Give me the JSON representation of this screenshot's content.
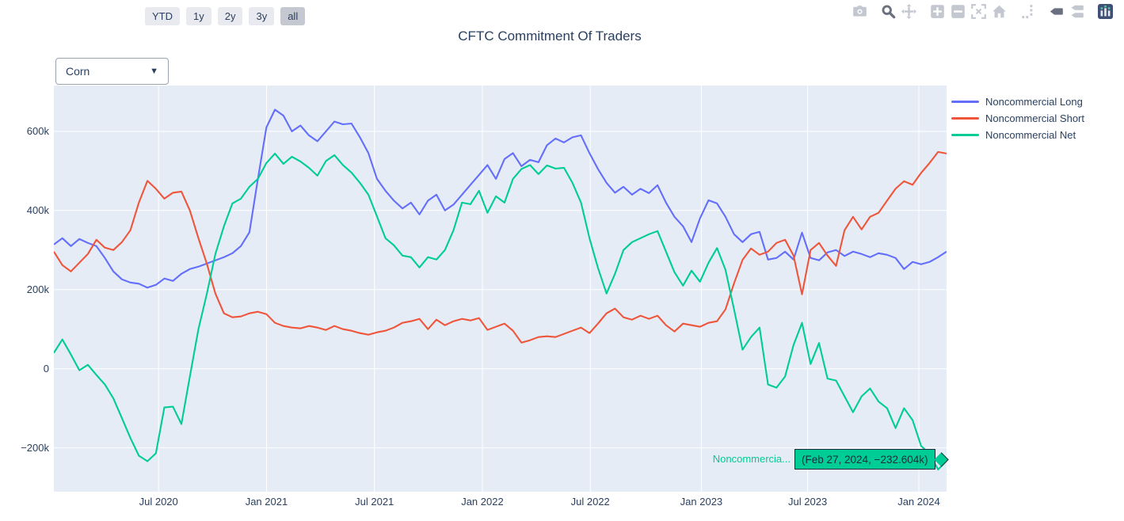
{
  "title": "CFTC Commitment Of Traders",
  "toolbar": {
    "range_buttons": [
      {
        "label": "YTD",
        "active": false
      },
      {
        "label": "1y",
        "active": false
      },
      {
        "label": "2y",
        "active": false
      },
      {
        "label": "3y",
        "active": false
      },
      {
        "label": "all",
        "active": true
      }
    ]
  },
  "dropdown": {
    "value": "Corn",
    "caret": "▼"
  },
  "modebar": {
    "icons": [
      {
        "name": "camera",
        "active": false
      },
      {
        "name": "zoom",
        "active": true
      },
      {
        "name": "pan",
        "active": false
      },
      {
        "name": "zoom-in",
        "active": false
      },
      {
        "name": "zoom-out",
        "active": false
      },
      {
        "name": "autoscale",
        "active": false
      },
      {
        "name": "reset-home",
        "active": false
      },
      {
        "name": "spikelines",
        "active": false
      },
      {
        "name": "hover-closest",
        "active": true
      },
      {
        "name": "hover-compare",
        "active": false
      },
      {
        "name": "plotly-logo",
        "active": false
      }
    ]
  },
  "tooltip": {
    "trace_label": "Noncommercia...",
    "text": "(Feb 27, 2024, −232.604k)",
    "bg": "#00cc96",
    "border": "#1e2b3c",
    "point": {
      "date": "Feb 27, 2024",
      "value_label": "−232.604k",
      "value": -232.604
    }
  },
  "chart_data": {
    "type": "line",
    "title": "CFTC Commitment Of Traders",
    "plot_bg": "#e5ecf6",
    "grid": true,
    "legend_position": "top-right",
    "x_range": [
      "Jan 2020",
      "Mar 2024"
    ],
    "ylim": [
      -311,
      716
    ],
    "y_unit": "thousand contracts",
    "yticks": {
      "values": [
        -200,
        0,
        200,
        400,
        600
      ],
      "labels": [
        "−200k",
        "0",
        "200k",
        "400k",
        "600k"
      ]
    },
    "xticks": {
      "fractions": [
        0.1173,
        0.2382,
        0.3591,
        0.48,
        0.6009,
        0.7253,
        0.8444,
        0.9689
      ],
      "labels": [
        "Jul 2020",
        "Jan 2021",
        "Jul 2021",
        "Jan 2022",
        "Jul 2022",
        "Jan 2023",
        "Jul 2023",
        "Jan 2024"
      ]
    },
    "series": [
      {
        "id": "noncommercial-long",
        "name": "Noncommercial Long",
        "color": "#636efa",
        "values": [
          314,
          330,
          310,
          328,
          318,
          310,
          280,
          246,
          226,
          218,
          215,
          205,
          212,
          228,
          222,
          240,
          252,
          258,
          266,
          274,
          282,
          292,
          310,
          345,
          480,
          610,
          655,
          640,
          600,
          615,
          590,
          575,
          600,
          625,
          618,
          620,
          585,
          545,
          480,
          450,
          425,
          405,
          420,
          390,
          425,
          440,
          400,
          415,
          440,
          465,
          490,
          515,
          480,
          530,
          545,
          512,
          528,
          522,
          565,
          582,
          572,
          585,
          590,
          545,
          505,
          470,
          445,
          460,
          440,
          455,
          444,
          464,
          420,
          384,
          360,
          320,
          380,
          426,
          418,
          384,
          340,
          320,
          340,
          346,
          276,
          280,
          296,
          276,
          344,
          280,
          274,
          294,
          300,
          285,
          296,
          290,
          282,
          292,
          288,
          280,
          252,
          270,
          264,
          270,
          282,
          296
        ]
      },
      {
        "id": "noncommercial-short",
        "name": "Noncommercial Short",
        "color": "#ef553b",
        "values": [
          296,
          262,
          246,
          268,
          290,
          326,
          306,
          300,
          320,
          350,
          420,
          475,
          455,
          430,
          445,
          448,
          400,
          330,
          265,
          190,
          140,
          130,
          132,
          140,
          144,
          138,
          116,
          108,
          104,
          102,
          108,
          104,
          98,
          108,
          100,
          96,
          90,
          86,
          92,
          96,
          104,
          116,
          120,
          126,
          100,
          124,
          110,
          120,
          126,
          122,
          128,
          98,
          106,
          114,
          96,
          66,
          72,
          80,
          82,
          80,
          88,
          96,
          104,
          90,
          114,
          140,
          152,
          130,
          124,
          134,
          126,
          134,
          110,
          94,
          114,
          110,
          106,
          116,
          120,
          150,
          216,
          275,
          304,
          288,
          296,
          318,
          326,
          286,
          188,
          300,
          318,
          286,
          260,
          350,
          384,
          352,
          384,
          394,
          425,
          455,
          474,
          465,
          495,
          520,
          548,
          544
        ]
      },
      {
        "id": "noncommercial-net",
        "name": "Noncommercial Net",
        "color": "#00cc96",
        "values": [
          40,
          74,
          36,
          -4,
          10,
          -16,
          -40,
          -75,
          -125,
          -175,
          -220,
          -234,
          -214,
          -98,
          -96,
          -140,
          -20,
          100,
          190,
          290,
          360,
          418,
          430,
          460,
          480,
          520,
          544,
          518,
          536,
          524,
          508,
          488,
          525,
          540,
          515,
          496,
          470,
          440,
          385,
          330,
          312,
          286,
          282,
          256,
          282,
          276,
          300,
          350,
          420,
          416,
          450,
          394,
          436,
          420,
          480,
          505,
          515,
          492,
          514,
          506,
          508,
          470,
          420,
          330,
          255,
          190,
          240,
          300,
          320,
          330,
          340,
          348,
          296,
          244,
          210,
          248,
          220,
          268,
          305,
          250,
          150,
          48,
          80,
          104,
          -40,
          -48,
          -20,
          60,
          116,
          12,
          65,
          -25,
          -30,
          -70,
          -110,
          -70,
          -50,
          -83,
          -100,
          -150,
          -100,
          -130,
          -195,
          -215,
          -255,
          -233
        ]
      }
    ]
  }
}
